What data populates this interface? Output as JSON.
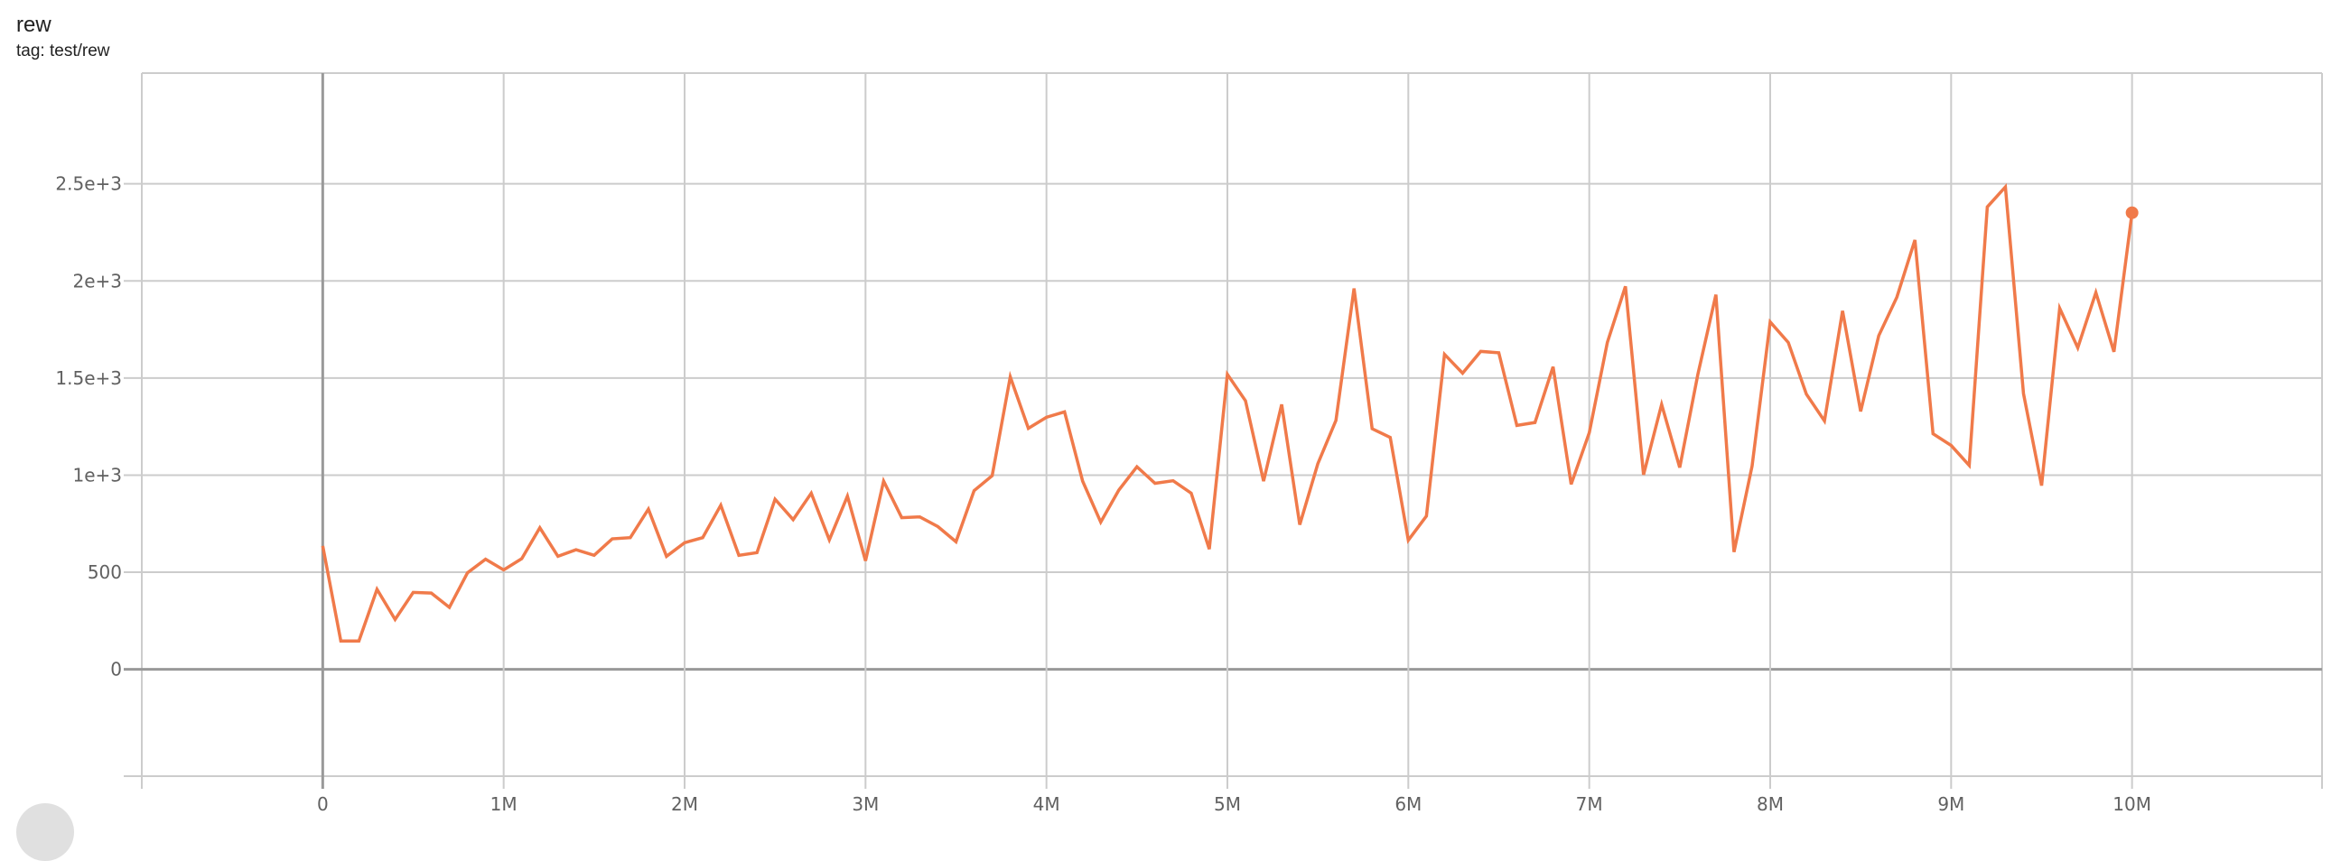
{
  "header": {
    "title": "rew",
    "tag": "tag: test/rew"
  },
  "chart_data": {
    "type": "line",
    "title": "rew",
    "subtitle": "tag: test/rew",
    "xlabel": "",
    "ylabel": "",
    "xlim": [
      -1000000,
      11050000
    ],
    "ylim": [
      -550,
      3070
    ],
    "grid": true,
    "x_ticks": [
      0,
      1000000,
      2000000,
      3000000,
      4000000,
      5000000,
      6000000,
      7000000,
      8000000,
      9000000,
      10000000
    ],
    "x_tick_labels": [
      "0",
      "1M",
      "2M",
      "3M",
      "4M",
      "5M",
      "6M",
      "7M",
      "8M",
      "9M",
      "10M"
    ],
    "y_ticks": [
      0,
      500,
      1000,
      1500,
      2000,
      2500
    ],
    "y_tick_labels": [
      "0",
      "500",
      "1e+3",
      "1.5e+3",
      "2e+3",
      "2.5e+3"
    ],
    "series": [
      {
        "color": "#f07a4a",
        "x_step": 100000,
        "x_start": 0,
        "values": [
          636,
          146,
          146,
          412,
          257,
          396,
          393,
          319,
          497,
          567,
          512,
          570,
          729,
          582,
          616,
          587,
          672,
          678,
          825,
          582,
          652,
          678,
          845,
          587,
          601,
          876,
          771,
          907,
          667,
          892,
          559,
          969,
          781,
          785,
          735,
          657,
          920,
          997,
          1506,
          1241,
          1298,
          1326,
          969,
          758,
          923,
          1043,
          958,
          971,
          907,
          619,
          1519,
          1383,
          969,
          1364,
          745,
          1059,
          1282,
          1961,
          1239,
          1194,
          665,
          789,
          1622,
          1525,
          1637,
          1630,
          1256,
          1271,
          1558,
          953,
          1218,
          1683,
          1972,
          1002,
          1364,
          1039,
          1518,
          1929,
          604,
          1047,
          1789,
          1683,
          1417,
          1279,
          1846,
          1328,
          1718,
          1916,
          2211,
          1213,
          1153,
          1050,
          2381,
          2484,
          1420,
          946,
          1859,
          1656,
          1940,
          1635,
          2351
        ]
      }
    ]
  }
}
